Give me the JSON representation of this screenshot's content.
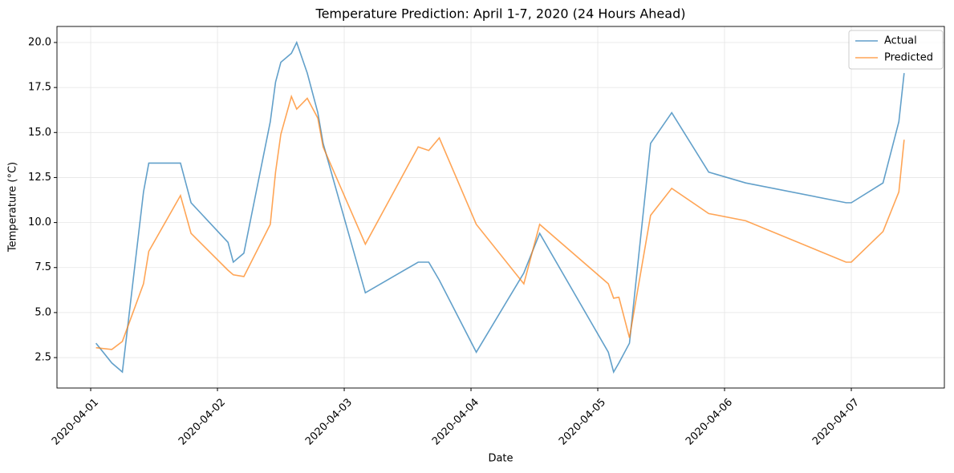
{
  "chart_data": {
    "type": "line",
    "title": "Temperature Prediction: April 1-7, 2020 (24 Hours Ahead)",
    "x_label": "Date",
    "y_label": "Temperature (°C)",
    "x": [
      "2020-04-01T01:00",
      "2020-04-01T04:00",
      "2020-04-01T06:00",
      "2020-04-01T10:00",
      "2020-04-01T11:00",
      "2020-04-01T17:00",
      "2020-04-01T19:00",
      "2020-04-02T02:00",
      "2020-04-02T03:00",
      "2020-04-02T05:00",
      "2020-04-02T10:00",
      "2020-04-02T11:00",
      "2020-04-02T12:00",
      "2020-04-02T14:00",
      "2020-04-02T15:00",
      "2020-04-02T17:00",
      "2020-04-02T19:00",
      "2020-04-02T20:00",
      "2020-04-03T04:00",
      "2020-04-03T14:00",
      "2020-04-03T16:00",
      "2020-04-03T18:00",
      "2020-04-04T01:00",
      "2020-04-04T10:00",
      "2020-04-04T13:00",
      "2020-04-05T02:00",
      "2020-04-05T03:00",
      "2020-04-05T04:00",
      "2020-04-05T06:00",
      "2020-04-05T10:00",
      "2020-04-05T14:00",
      "2020-04-05T21:00",
      "2020-04-06T04:00",
      "2020-04-06T23:00",
      "2020-04-07T00:00",
      "2020-04-07T06:00",
      "2020-04-07T09:00",
      "2020-04-07T10:00"
    ],
    "series": [
      {
        "name": "Actual",
        "color": "#1f77b4",
        "values": [
          3.3,
          2.2,
          1.7,
          11.7,
          13.3,
          13.3,
          11.1,
          8.9,
          7.8,
          8.3,
          15.6,
          17.8,
          18.9,
          19.4,
          20.0,
          18.3,
          16.1,
          14.4,
          6.1,
          7.8,
          7.8,
          6.8,
          2.8,
          7.2,
          9.4,
          2.8,
          1.7,
          2.2,
          3.3,
          14.4,
          16.1,
          12.8,
          12.2,
          11.1,
          11.1,
          12.2,
          15.6,
          18.3
        ]
      },
      {
        "name": "Predicted",
        "color": "#ff7f0e",
        "values": [
          3.05,
          2.95,
          3.4,
          6.6,
          8.4,
          11.5,
          9.4,
          7.35,
          7.1,
          7.0,
          9.9,
          12.8,
          14.9,
          17.0,
          16.3,
          16.9,
          15.8,
          14.2,
          8.8,
          14.2,
          14.0,
          14.7,
          9.9,
          6.6,
          9.9,
          6.6,
          5.8,
          5.85,
          3.6,
          10.4,
          11.9,
          10.5,
          10.1,
          7.8,
          7.8,
          9.5,
          11.7,
          14.6
        ]
      }
    ],
    "xlim": [
      "2020-03-31T17:37",
      "2020-04-07T17:37"
    ],
    "xticks": [
      "2020-04-01",
      "2020-04-02",
      "2020-04-03",
      "2020-04-04",
      "2020-04-05",
      "2020-04-06",
      "2020-04-07"
    ],
    "ylim": [
      0.81,
      20.89
    ],
    "yticks": [
      2.5,
      {
        "value": 5,
        "label": "5.0"
      },
      7.5,
      {
        "value": 10,
        "label": "10.0"
      },
      12.5,
      {
        "value": 15,
        "label": "15.0"
      },
      17.5,
      {
        "value": 20,
        "label": "20.0"
      }
    ],
    "grid": true,
    "legend": "upper right"
  }
}
